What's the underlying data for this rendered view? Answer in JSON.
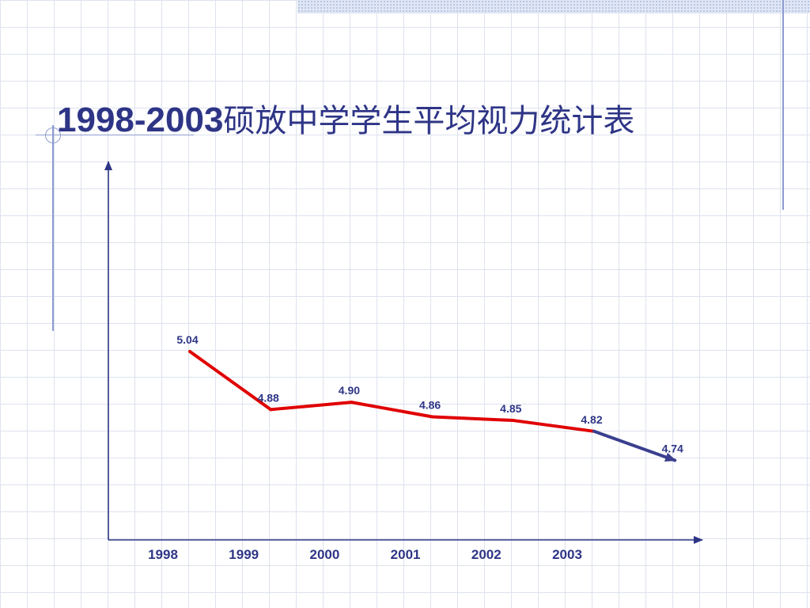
{
  "title": {
    "years": "1998-2003",
    "text": "硕放中学学生平均视力统计表"
  },
  "colors": {
    "title": "#2e3586",
    "axis": "#2e3586",
    "line_main": "#e00000",
    "line_tail": "#3b3f8f",
    "labels": "#2e3586"
  },
  "chart_data": {
    "type": "line",
    "title": "1998-2003硕放中学学生平均视力统计表",
    "categories": [
      "1998",
      "1999",
      "2000",
      "2001",
      "2002",
      "2003"
    ],
    "points": [
      {
        "x": 1998,
        "value": 5.04,
        "label": "5.04"
      },
      {
        "x": 1999,
        "value": 4.88,
        "label": "4.88"
      },
      {
        "x": 2000,
        "value": 4.9,
        "label": "4.90"
      },
      {
        "x": 2001,
        "value": 4.86,
        "label": "4.86"
      },
      {
        "x": 2002,
        "value": 4.85,
        "label": "4.85"
      },
      {
        "x": 2003,
        "value": 4.82,
        "label": "4.82"
      },
      {
        "x": 2004,
        "value": 4.74,
        "label": "4.74",
        "projected": true
      }
    ],
    "xlabel": "",
    "ylabel": "",
    "grid": false,
    "legend": "none"
  }
}
